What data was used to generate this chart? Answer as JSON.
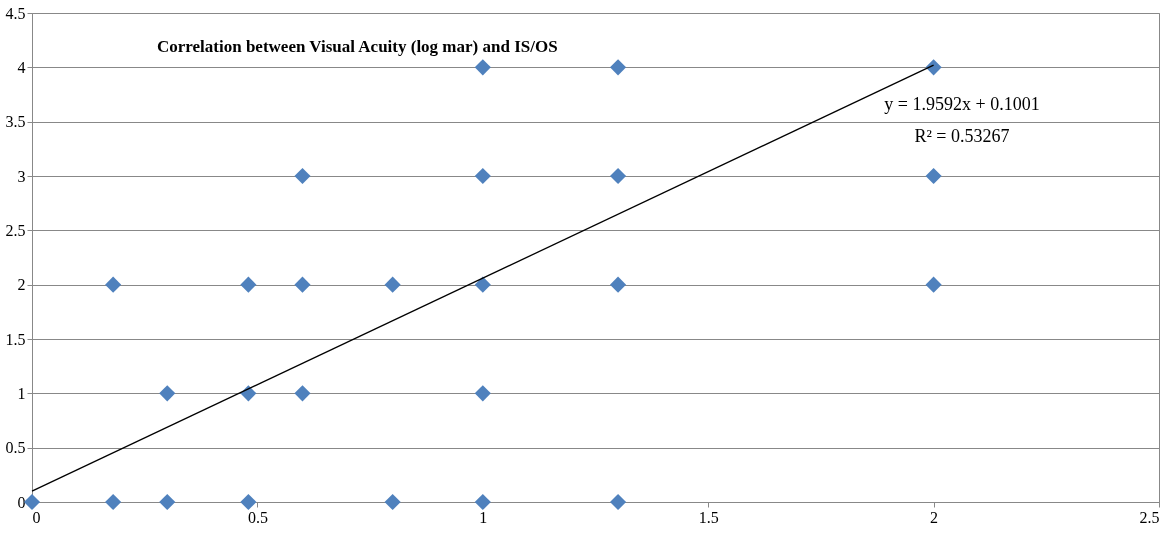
{
  "chart_data": {
    "type": "scatter",
    "title": "Correlation between Visual Acuity (log mar) and IS/OS",
    "annotations": [
      "y = 1.9592x + 0.1001",
      "R² = 0.53267"
    ],
    "series": [
      {
        "color": "#4f81bd",
        "marker": "diamond",
        "x": [
          0,
          0.18,
          0.3,
          0.48,
          0.8,
          1,
          1.3,
          0.3,
          0.48,
          0.6,
          1,
          0.18,
          0.48,
          0.6,
          0.8,
          1,
          1.3,
          2,
          0.6,
          1,
          1.3,
          2,
          1,
          1.3,
          2
        ],
        "values": [
          0,
          0,
          0,
          0,
          0,
          0,
          0,
          1,
          1,
          1,
          1,
          2,
          2,
          2,
          2,
          2,
          2,
          2,
          3,
          3,
          3,
          3,
          4,
          4,
          4
        ]
      },
      {
        "type": "line",
        "color": "#000000",
        "x": [
          0,
          2
        ],
        "values": [
          0.1,
          4.02
        ]
      }
    ],
    "xlim": [
      0,
      2.5
    ],
    "xticks": [
      0,
      0.5,
      1,
      1.5,
      2,
      2.5
    ],
    "ylim": [
      0,
      4.5
    ],
    "yticks": [
      0,
      0.5,
      1,
      1.5,
      2,
      2.5,
      3,
      3.5,
      4,
      4.5
    ],
    "grid": "y"
  }
}
